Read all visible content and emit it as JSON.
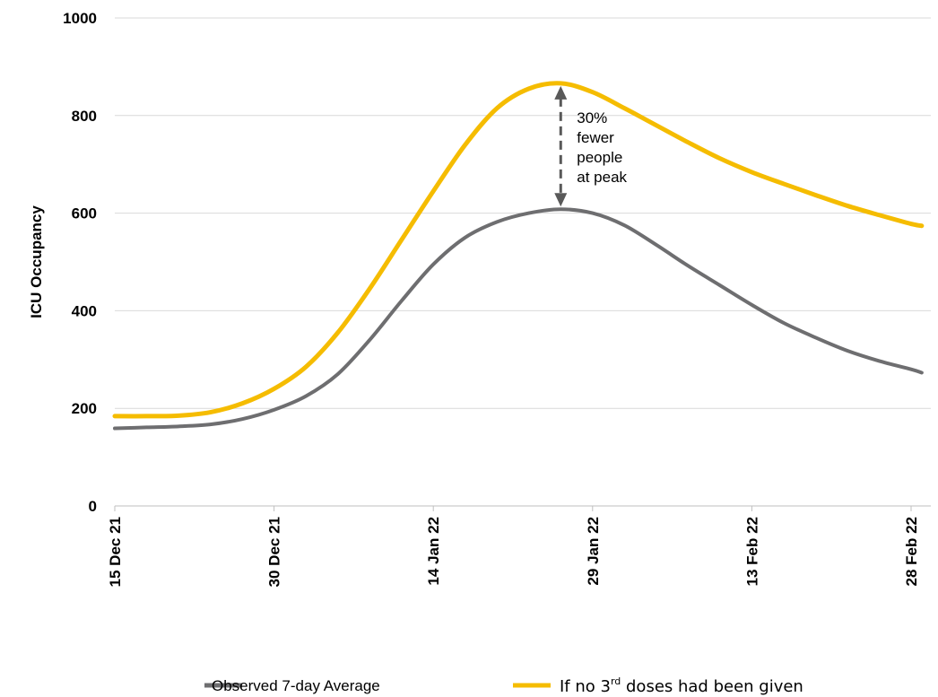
{
  "chart_data": {
    "type": "line",
    "ylabel": "ICU Occupancy",
    "ylim": [
      0,
      1000
    ],
    "yticks": [
      0,
      200,
      400,
      600,
      800,
      1000
    ],
    "ytick_labels": [
      "0",
      "200",
      "400",
      "600",
      "800",
      "1000"
    ],
    "xlim": [
      "2021-12-15",
      "2022-03-01"
    ],
    "xticks": [
      {
        "date": "2021-12-15",
        "label": "15 Dec 21"
      },
      {
        "date": "2021-12-30",
        "label": "30 Dec 21"
      },
      {
        "date": "2022-01-14",
        "label": "14 Jan 22"
      },
      {
        "date": "2022-01-29",
        "label": "29 Jan 22"
      },
      {
        "date": "2022-02-13",
        "label": "13 Feb 22"
      },
      {
        "date": "2022-02-28",
        "label": "28 Feb 22"
      }
    ],
    "grid": "horizontal",
    "legend": "bottom",
    "series": [
      {
        "name": "Observed 7-day Average",
        "color": "#6e6e70",
        "points": [
          [
            "2021-12-15",
            159
          ],
          [
            "2021-12-18",
            161
          ],
          [
            "2021-12-21",
            163
          ],
          [
            "2021-12-24",
            167
          ],
          [
            "2021-12-27",
            178
          ],
          [
            "2021-12-30",
            197
          ],
          [
            "2022-01-02",
            225
          ],
          [
            "2022-01-05",
            270
          ],
          [
            "2022-01-08",
            340
          ],
          [
            "2022-01-11",
            420
          ],
          [
            "2022-01-14",
            495
          ],
          [
            "2022-01-17",
            550
          ],
          [
            "2022-01-20",
            582
          ],
          [
            "2022-01-23",
            600
          ],
          [
            "2022-01-26",
            608
          ],
          [
            "2022-01-29",
            600
          ],
          [
            "2022-02-01",
            575
          ],
          [
            "2022-02-04",
            535
          ],
          [
            "2022-02-07",
            492
          ],
          [
            "2022-02-10",
            452
          ],
          [
            "2022-02-13",
            412
          ],
          [
            "2022-02-16",
            375
          ],
          [
            "2022-02-19",
            345
          ],
          [
            "2022-02-22",
            318
          ],
          [
            "2022-02-25",
            297
          ],
          [
            "2022-02-28",
            280
          ],
          [
            "2022-03-01",
            273
          ]
        ]
      },
      {
        "name": "If no 3rd doses had been given",
        "color": "#f5bc00",
        "points": [
          [
            "2021-12-15",
            184
          ],
          [
            "2021-12-18",
            184
          ],
          [
            "2021-12-21",
            185
          ],
          [
            "2021-12-24",
            192
          ],
          [
            "2021-12-27",
            210
          ],
          [
            "2021-12-30",
            240
          ],
          [
            "2022-01-02",
            285
          ],
          [
            "2022-01-05",
            355
          ],
          [
            "2022-01-08",
            445
          ],
          [
            "2022-01-11",
            545
          ],
          [
            "2022-01-14",
            645
          ],
          [
            "2022-01-17",
            740
          ],
          [
            "2022-01-20",
            815
          ],
          [
            "2022-01-23",
            855
          ],
          [
            "2022-01-26",
            866
          ],
          [
            "2022-01-29",
            848
          ],
          [
            "2022-02-01",
            815
          ],
          [
            "2022-02-04",
            780
          ],
          [
            "2022-02-07",
            745
          ],
          [
            "2022-02-10",
            712
          ],
          [
            "2022-02-13",
            684
          ],
          [
            "2022-02-16",
            660
          ],
          [
            "2022-02-19",
            637
          ],
          [
            "2022-02-22",
            615
          ],
          [
            "2022-02-25",
            596
          ],
          [
            "2022-02-28",
            578
          ],
          [
            "2022-03-01",
            574
          ]
        ]
      }
    ],
    "annotation": {
      "lines": [
        "30%",
        "fewer",
        "people",
        "at peak"
      ],
      "date": "2022-01-26",
      "from": 608,
      "to": 866
    },
    "legend_entries": [
      {
        "text": "Observed 7-day Average"
      },
      {
        "text_before": "If no 3",
        "sup": "rd",
        "text_after": " doses had been given"
      }
    ]
  }
}
